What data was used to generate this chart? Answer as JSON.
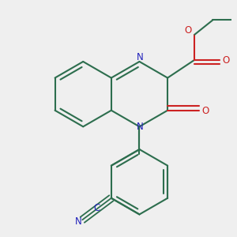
{
  "bg_color": "#efefef",
  "bond_color": "#2d6e4e",
  "N_color": "#2222bb",
  "O_color": "#cc2222",
  "lw": 1.5,
  "fig_w": 3.0,
  "fig_h": 3.0,
  "dpi": 100,
  "xlim": [
    -1.25,
    1.25
  ],
  "ylim": [
    -1.45,
    1.15
  ]
}
